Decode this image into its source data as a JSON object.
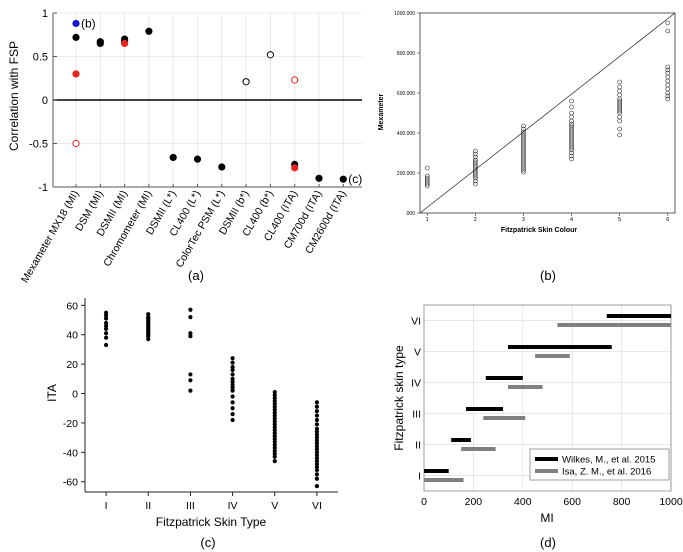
{
  "chart_data": [
    {
      "id": "a",
      "type": "scatter",
      "panel_label": "(a)",
      "ylabel": "Correlation with FSP",
      "ylim": [
        -1,
        1
      ],
      "yticks": [
        1,
        0.5,
        0,
        -0.5,
        -1
      ],
      "ytick_labels": [
        "1",
        "0.5",
        "0",
        "-0.5",
        "-1"
      ],
      "categories": [
        "Mexameter MX18 (MI)",
        "DSM (MI)",
        "DSMII (MI)",
        "Chromometer (MI)",
        "DSMII (L*)",
        "CL400 (L*)",
        "ColorTec PSM (L*)",
        "DSMII (b*)",
        "CL400 (b*)",
        "CL400 (ITA)",
        "CM700d (ITA)",
        "CM2600d (ITA)"
      ],
      "points": [
        {
          "cat": 0,
          "value": 0.88,
          "style": "blue"
        },
        {
          "cat": 0,
          "value": 0.72,
          "style": "black"
        },
        {
          "cat": 0,
          "value": 0.3,
          "style": "red"
        },
        {
          "cat": 0,
          "value": -0.5,
          "style": "red-open"
        },
        {
          "cat": 1,
          "value": 0.67,
          "style": "black"
        },
        {
          "cat": 1,
          "value": 0.65,
          "style": "black"
        },
        {
          "cat": 2,
          "value": 0.7,
          "style": "black"
        },
        {
          "cat": 2,
          "value": 0.68,
          "style": "black"
        },
        {
          "cat": 2,
          "value": 0.65,
          "style": "red"
        },
        {
          "cat": 3,
          "value": 0.79,
          "style": "black"
        },
        {
          "cat": 4,
          "value": -0.66,
          "style": "black"
        },
        {
          "cat": 5,
          "value": -0.68,
          "style": "black"
        },
        {
          "cat": 6,
          "value": -0.77,
          "style": "black"
        },
        {
          "cat": 7,
          "value": 0.21,
          "style": "black-open"
        },
        {
          "cat": 8,
          "value": 0.52,
          "style": "black-open"
        },
        {
          "cat": 9,
          "value": 0.23,
          "style": "red-open"
        },
        {
          "cat": 9,
          "value": -0.74,
          "style": "black"
        },
        {
          "cat": 9,
          "value": -0.78,
          "style": "red"
        },
        {
          "cat": 10,
          "value": -0.9,
          "style": "black"
        },
        {
          "cat": 11,
          "value": -0.91,
          "style": "black"
        }
      ],
      "annotations": [
        {
          "text": "(b)",
          "cat": 0,
          "value": 0.88
        },
        {
          "text": "(c)",
          "cat": 11,
          "value": -0.91
        }
      ],
      "colors": {
        "black": "#000000",
        "red": "#e8231c",
        "blue": "#1515d6"
      }
    },
    {
      "id": "b",
      "type": "scatter",
      "panel_label": "(b)",
      "xlabel": "Fitzpatrick Skin Colour",
      "ylabel": "Mexameter",
      "xlim": [
        0.85,
        6.15
      ],
      "ylim": [
        0,
        1000
      ],
      "xticks": [
        1,
        2,
        3,
        4,
        5,
        6
      ],
      "xtick_labels": [
        "1",
        "2",
        "3",
        "4",
        "5",
        "6"
      ],
      "yticks": [
        0,
        200,
        400,
        600,
        800,
        1000
      ],
      "ytick_labels": [
        ".000",
        "200.000",
        "400.000",
        "600.000",
        "800.000",
        "1000.000"
      ],
      "reference_line": {
        "from": [
          0.85,
          0
        ],
        "to": [
          6.15,
          1000
        ]
      },
      "groups": [
        {
          "x": 1,
          "values": [
            135,
            145,
            155,
            165,
            175,
            185,
            225
          ]
        },
        {
          "x": 2,
          "values": [
            145,
            160,
            175,
            185,
            195,
            205,
            215,
            225,
            235,
            245,
            255,
            265,
            280,
            295,
            310
          ]
        },
        {
          "x": 3,
          "values": [
            205,
            215,
            225,
            235,
            245,
            255,
            265,
            275,
            285,
            295,
            305,
            315,
            325,
            335,
            345,
            355,
            365,
            375,
            385,
            395,
            405,
            420,
            435
          ]
        },
        {
          "x": 4,
          "values": [
            270,
            285,
            300,
            315,
            325,
            335,
            345,
            355,
            365,
            375,
            385,
            395,
            405,
            415,
            425,
            435,
            445,
            460,
            480,
            500,
            530,
            560
          ]
        },
        {
          "x": 5,
          "values": [
            390,
            420,
            460,
            480,
            500,
            510,
            520,
            530,
            540,
            550,
            560,
            570,
            590,
            610,
            630,
            655
          ]
        },
        {
          "x": 6,
          "values": [
            570,
            585,
            600,
            620,
            640,
            660,
            680,
            700,
            715,
            730,
            910,
            950
          ]
        }
      ]
    },
    {
      "id": "c",
      "type": "scatter",
      "panel_label": "(c)",
      "xlabel": "Fitzpatrick Skin Type",
      "ylabel": "ITA",
      "xlim": [
        0.5,
        6.5
      ],
      "ylim": [
        -67,
        65
      ],
      "xticks": [
        1,
        2,
        3,
        4,
        5,
        6
      ],
      "xtick_labels": [
        "I",
        "II",
        "III",
        "IV",
        "V",
        "VI"
      ],
      "yticks": [
        60,
        40,
        20,
        0,
        -20,
        -40,
        -60
      ],
      "ytick_labels": [
        "60",
        "40",
        "20",
        "0",
        "-20",
        "-40",
        "-60"
      ],
      "groups": [
        {
          "x": 1,
          "values": [
            55,
            53,
            51,
            48,
            46,
            44,
            41,
            38,
            33
          ]
        },
        {
          "x": 2,
          "values": [
            54,
            52,
            51,
            50,
            49,
            48,
            47,
            46,
            45,
            44,
            43,
            42,
            41,
            40,
            39,
            37
          ]
        },
        {
          "x": 3,
          "values": [
            57,
            52,
            41,
            39,
            13,
            9,
            2
          ]
        },
        {
          "x": 4,
          "values": [
            24,
            21,
            18,
            16,
            13,
            10,
            8,
            6,
            4,
            2,
            -2,
            -6,
            -10,
            -14,
            -18
          ]
        },
        {
          "x": 5,
          "values": [
            1,
            -1,
            -3,
            -5,
            -7,
            -9,
            -11,
            -13,
            -15,
            -17,
            -19,
            -21,
            -23,
            -25,
            -27,
            -29,
            -31,
            -33,
            -35,
            -37,
            -39,
            -41,
            -43,
            -46
          ]
        },
        {
          "x": 6,
          "values": [
            -6,
            -9,
            -12,
            -15,
            -18,
            -21,
            -24,
            -26,
            -28,
            -30,
            -32,
            -34,
            -36,
            -38,
            -40,
            -42,
            -44,
            -46,
            -48,
            -50,
            -52,
            -55,
            -58,
            -63
          ]
        }
      ]
    },
    {
      "id": "d",
      "type": "range",
      "panel_label": "(d)",
      "xlabel": "MI",
      "ylabel": "Fitzpatrick skin type",
      "xlim": [
        0,
        1000
      ],
      "xticks": [
        0,
        200,
        400,
        600,
        800,
        1000
      ],
      "xtick_labels": [
        "0",
        "200",
        "400",
        "600",
        "800",
        "1000"
      ],
      "categories": [
        "I",
        "II",
        "III",
        "IV",
        "V",
        "VI"
      ],
      "series": [
        {
          "name": "Wilkes, M., et al. 2015",
          "color": "#000000",
          "ranges": [
            [
              0,
              100
            ],
            [
              110,
              190
            ],
            [
              170,
              320
            ],
            [
              250,
              400
            ],
            [
              340,
              760
            ],
            [
              740,
              1000
            ]
          ]
        },
        {
          "name": "Isa, Z. M., et al. 2016",
          "color": "#808080",
          "ranges": [
            [
              0,
              160
            ],
            [
              150,
              290
            ],
            [
              240,
              410
            ],
            [
              340,
              480
            ],
            [
              450,
              590
            ],
            [
              540,
              1000
            ]
          ]
        }
      ]
    }
  ]
}
